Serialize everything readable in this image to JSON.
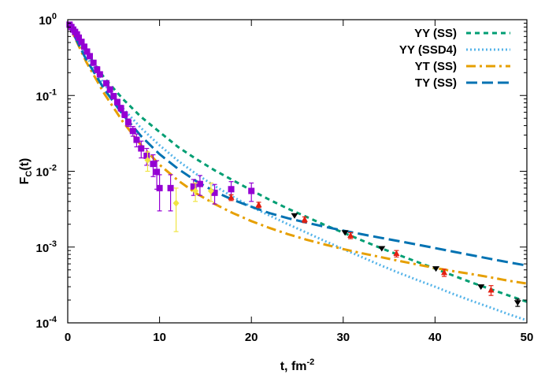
{
  "chart_data": {
    "type": "scatter",
    "xlabel": "t, fm",
    "xlabel_sup": "-2",
    "ylabel": "F",
    "ylabel_sub": "C",
    "ylabel_suffix": "(t)",
    "xlim": [
      0,
      50
    ],
    "ylim": [
      0.0001,
      1
    ],
    "yscale": "log",
    "grid": false,
    "legend_position": "top-right",
    "x_ticks": [
      {
        "value": 0,
        "label": "0"
      },
      {
        "value": 10,
        "label": "10"
      },
      {
        "value": 20,
        "label": "20"
      },
      {
        "value": 30,
        "label": "30"
      },
      {
        "value": 40,
        "label": "40"
      },
      {
        "value": 50,
        "label": "50"
      }
    ],
    "y_ticks": [
      {
        "value": 1,
        "base": "10",
        "exp": "0"
      },
      {
        "value": 0.1,
        "base": "10",
        "exp": "-1"
      },
      {
        "value": 0.01,
        "base": "10",
        "exp": "-2"
      },
      {
        "value": 0.001,
        "base": "10",
        "exp": "-3"
      },
      {
        "value": 0.0001,
        "base": "10",
        "exp": "-4"
      }
    ],
    "curves": [
      {
        "name": "YY (SS)",
        "color": "#009e73",
        "dash": "dense-dash",
        "x": [
          0,
          2,
          4,
          6,
          8,
          10,
          12,
          14,
          16,
          18,
          20,
          22,
          24,
          26,
          28,
          30,
          32,
          34,
          36,
          38,
          40,
          42,
          44,
          46,
          48,
          50
        ],
        "y": [
          0.92,
          0.38,
          0.17,
          0.09,
          0.052,
          0.033,
          0.021,
          0.0145,
          0.0103,
          0.0076,
          0.0056,
          0.0042,
          0.0032,
          0.0025,
          0.00195,
          0.00155,
          0.00123,
          0.00098,
          0.00079,
          0.00064,
          0.00052,
          0.00042,
          0.00034,
          0.00028,
          0.00023,
          0.00019
        ]
      },
      {
        "name": "YY (SSD4)",
        "color": "#56b4e9",
        "dash": "dotted",
        "x": [
          0,
          2,
          4,
          6,
          8,
          10,
          12,
          14,
          16,
          18,
          20,
          22,
          24,
          26,
          28,
          30,
          32,
          34,
          36,
          38,
          40,
          42,
          44,
          46,
          48,
          50
        ],
        "y": [
          0.92,
          0.33,
          0.14,
          0.068,
          0.037,
          0.022,
          0.0138,
          0.0092,
          0.0064,
          0.0046,
          0.0034,
          0.0026,
          0.002,
          0.00155,
          0.0012,
          0.00094,
          0.00074,
          0.00058,
          0.00046,
          0.00037,
          0.0003,
          0.00024,
          0.000195,
          0.00016,
          0.00013,
          0.000108
        ]
      },
      {
        "name": "YT (SS)",
        "color": "#e69f00",
        "dash": "dash-dot",
        "x": [
          0,
          2,
          4,
          6,
          8,
          10,
          12,
          14,
          16,
          18,
          20,
          22,
          24,
          26,
          28,
          30,
          32,
          34,
          36,
          38,
          40,
          42,
          44,
          46,
          48,
          50
        ],
        "y": [
          0.92,
          0.28,
          0.105,
          0.045,
          0.022,
          0.0122,
          0.0076,
          0.0051,
          0.0037,
          0.0028,
          0.0022,
          0.00178,
          0.00148,
          0.00125,
          0.00108,
          0.00094,
          0.00083,
          0.00074,
          0.00066,
          0.00059,
          0.00053,
          0.00048,
          0.00044,
          0.0004,
          0.00036,
          0.00033
        ]
      },
      {
        "name": "TY (SS)",
        "color": "#0072b2",
        "dash": "long-dash",
        "x": [
          0,
          2,
          4,
          6,
          8,
          10,
          12,
          14,
          16,
          18,
          20,
          22,
          24,
          26,
          28,
          30,
          32,
          34,
          36,
          38,
          40,
          42,
          44,
          46,
          48,
          50
        ],
        "y": [
          0.92,
          0.3,
          0.12,
          0.056,
          0.029,
          0.0168,
          0.0108,
          0.0074,
          0.0054,
          0.0042,
          0.0034,
          0.0028,
          0.0024,
          0.0021,
          0.00185,
          0.00165,
          0.00148,
          0.00133,
          0.0012,
          0.00108,
          0.00097,
          0.00087,
          0.00078,
          0.0007,
          0.00063,
          0.00057
        ]
      }
    ],
    "datasets": [
      {
        "marker": "square",
        "color": "#9400d3",
        "points": [
          {
            "x": 0.2,
            "y": 0.86,
            "err": 0.03
          },
          {
            "x": 0.4,
            "y": 0.8,
            "err": 0.03
          },
          {
            "x": 0.6,
            "y": 0.74,
            "err": 0.03
          },
          {
            "x": 0.8,
            "y": 0.69,
            "err": 0.03
          },
          {
            "x": 1.0,
            "y": 0.64,
            "err": 0.03
          },
          {
            "x": 1.2,
            "y": 0.58,
            "err": 0.03
          },
          {
            "x": 1.5,
            "y": 0.51,
            "err": 0.03
          },
          {
            "x": 1.8,
            "y": 0.44,
            "err": 0.03
          },
          {
            "x": 2.1,
            "y": 0.38,
            "err": 0.02
          },
          {
            "x": 2.4,
            "y": 0.33,
            "err": 0.02
          },
          {
            "x": 2.8,
            "y": 0.27,
            "err": 0.02
          },
          {
            "x": 3.2,
            "y": 0.22,
            "err": 0.02
          },
          {
            "x": 3.5,
            "y": 0.19,
            "err": 0.015
          },
          {
            "x": 4.2,
            "y": 0.145,
            "err": 0.01
          },
          {
            "x": 4.6,
            "y": 0.12,
            "err": 0.01
          },
          {
            "x": 5.0,
            "y": 0.098,
            "err": 0.008
          },
          {
            "x": 5.4,
            "y": 0.082,
            "err": 0.007
          },
          {
            "x": 5.8,
            "y": 0.068,
            "err": 0.006
          },
          {
            "x": 6.2,
            "y": 0.056,
            "err": 0.005
          },
          {
            "x": 6.6,
            "y": 0.044,
            "err": 0.005
          },
          {
            "x": 7.1,
            "y": 0.034,
            "err": 0.005
          },
          {
            "x": 7.5,
            "y": 0.026,
            "err": 0.005
          },
          {
            "x": 8.0,
            "y": 0.02,
            "err": 0.005
          },
          {
            "x": 8.6,
            "y": 0.016,
            "err": 0.004
          },
          {
            "x": 9.3,
            "y": 0.0125,
            "err": 0.004
          },
          {
            "x": 9.7,
            "y": 0.0098,
            "err": 0.004
          },
          {
            "x": 10.0,
            "y": 0.006,
            "err": 0.003
          },
          {
            "x": 11.2,
            "y": 0.006,
            "err": 0.003
          },
          {
            "x": 13.7,
            "y": 0.0063,
            "err": 0.0015
          },
          {
            "x": 14.4,
            "y": 0.0068,
            "err": 0.002
          },
          {
            "x": 16.0,
            "y": 0.0052,
            "err": 0.0015
          },
          {
            "x": 17.8,
            "y": 0.0058,
            "err": 0.0015
          },
          {
            "x": 20.0,
            "y": 0.0055,
            "err": 0.0015
          }
        ]
      },
      {
        "marker": "diamond",
        "color": "#f0e442",
        "points": [
          {
            "x": 8.7,
            "y": 0.014,
            "err": 0.004
          },
          {
            "x": 11.8,
            "y": 0.0038,
            "err": 0.0022
          },
          {
            "x": 13.9,
            "y": 0.0055,
            "err": 0.0015
          },
          {
            "x": 15.6,
            "y": 0.0055,
            "err": 0.0015
          }
        ]
      },
      {
        "marker": "triangle-up",
        "color": "#e51e10",
        "points": [
          {
            "x": 17.8,
            "y": 0.0045,
            "err": 0.0004
          },
          {
            "x": 20.8,
            "y": 0.0036,
            "err": 0.0003
          },
          {
            "x": 25.8,
            "y": 0.0023,
            "err": 0.0002
          },
          {
            "x": 30.8,
            "y": 0.00142,
            "err": 0.00013
          },
          {
            "x": 35.8,
            "y": 0.00082,
            "err": 8e-05
          },
          {
            "x": 41.0,
            "y": 0.00046,
            "err": 5e-05
          },
          {
            "x": 46.1,
            "y": 0.00027,
            "err": 4e-05
          }
        ]
      },
      {
        "marker": "triangle-down",
        "color": "#000000",
        "points": [
          {
            "x": 24.7,
            "y": 0.0026,
            "err": 0
          },
          {
            "x": 30.2,
            "y": 0.00155,
            "err": 0
          },
          {
            "x": 34.2,
            "y": 0.00096,
            "err": 0
          },
          {
            "x": 40.1,
            "y": 0.00052,
            "err": 0
          },
          {
            "x": 45.0,
            "y": 0.0003,
            "err": 0
          },
          {
            "x": 49.0,
            "y": 0.000185,
            "err": 2e-05
          }
        ]
      }
    ]
  }
}
